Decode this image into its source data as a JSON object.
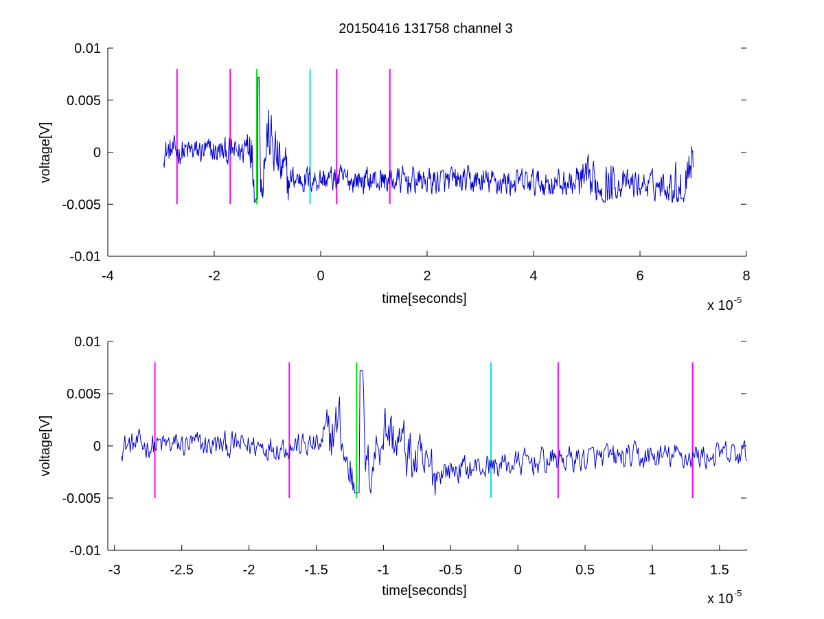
{
  "chart_data": [
    {
      "type": "line",
      "title": "20150416 131758 channel 3",
      "xlabel": "time[seconds]",
      "ylabel": "voltage[V]",
      "xlim": [
        -4e-05,
        8e-05
      ],
      "ylim": [
        -0.01,
        0.01
      ],
      "x_scale_label": "x 10",
      "x_scale_exponent": "-5",
      "x_ticks": [
        -4,
        -2,
        0,
        2,
        4,
        6,
        8
      ],
      "x_tick_labels": [
        "-4",
        "-2",
        "0",
        "2",
        "4",
        "6",
        "8"
      ],
      "y_ticks": [
        -0.01,
        -0.005,
        0,
        0.005,
        0.01
      ],
      "y_tick_labels": [
        "-0.01",
        "-0.005",
        "0",
        "0.005",
        "0.01"
      ],
      "grid": false,
      "signal": {
        "color": "#0000d0",
        "t_start": -2.95e-05,
        "t_end": 7e-05,
        "samples": 1000,
        "anchors": [
          [
            -2.95e-05,
            0.0001
          ],
          [
            -1.45e-05,
            0.0
          ],
          [
            -1.33e-05,
            0.0033
          ],
          [
            -1.28e-05,
            -0.003
          ],
          [
            -1.2e-05,
            -0.0045
          ],
          [
            -1.17e-05,
            0.0072
          ],
          [
            -1.13e-05,
            -0.0042
          ],
          [
            -1e-05,
            0.0026
          ],
          [
            -7e-06,
            -0.0035
          ],
          [
            6.8e-05,
            -0.0044
          ],
          [
            7e-05,
            0.0003
          ]
        ]
      },
      "markers": [
        {
          "x": -2.7e-05,
          "color": "#ff00ff"
        },
        {
          "x": -1.7e-05,
          "color": "#ff00ff"
        },
        {
          "x": -1.2e-05,
          "color": "#00ee00"
        },
        {
          "x": -2e-06,
          "color": "#00e5e5"
        },
        {
          "x": 3e-06,
          "color": "#ff00ff"
        },
        {
          "x": 1.3e-05,
          "color": "#ff00ff"
        }
      ],
      "marker_range": [
        -0.005,
        0.008
      ]
    },
    {
      "type": "line",
      "title": "",
      "xlabel": "time[seconds]",
      "ylabel": "voltage[V]",
      "xlim": [
        -3.05e-05,
        1.7e-05
      ],
      "ylim": [
        -0.01,
        0.01
      ],
      "x_scale_label": "x 10",
      "x_scale_exponent": "-5",
      "x_ticks": [
        -3,
        -2.5,
        -2,
        -1.5,
        -1,
        -0.5,
        0,
        0.5,
        1,
        1.5
      ],
      "x_tick_labels": [
        "-3",
        "-2.5",
        "-2",
        "-1.5",
        "-1",
        "-0.5",
        "0",
        "0.5",
        "1",
        "1.5"
      ],
      "y_ticks": [
        -0.01,
        -0.005,
        0,
        0.005,
        0.01
      ],
      "y_tick_labels": [
        "-0.01",
        "-0.005",
        "0",
        "0.005",
        "0.01"
      ],
      "grid": false,
      "signal": {
        "color": "#0000d0",
        "t_start": -2.95e-05,
        "t_end": 1.7e-05,
        "samples": 700,
        "anchors": [
          [
            -2.95e-05,
            0.0001
          ],
          [
            -1.45e-05,
            0.0
          ],
          [
            -1.33e-05,
            0.0033
          ],
          [
            -1.28e-05,
            -0.003
          ],
          [
            -1.2e-05,
            -0.0045
          ],
          [
            -1.17e-05,
            0.0072
          ],
          [
            -1.13e-05,
            -0.0042
          ],
          [
            -1e-05,
            0.0026
          ],
          [
            -7e-06,
            -0.0035
          ],
          [
            3e-06,
            -0.0018
          ],
          [
            1.7e-05,
            -0.0012
          ]
        ]
      },
      "markers": [
        {
          "x": -2.7e-05,
          "color": "#ff00ff"
        },
        {
          "x": -1.7e-05,
          "color": "#ff00ff"
        },
        {
          "x": -1.2e-05,
          "color": "#00ee00"
        },
        {
          "x": -2e-06,
          "color": "#00e5e5"
        },
        {
          "x": 3e-06,
          "color": "#ff00ff"
        },
        {
          "x": 1.3e-05,
          "color": "#ff00ff"
        }
      ],
      "marker_range": [
        -0.005,
        0.008
      ]
    }
  ]
}
